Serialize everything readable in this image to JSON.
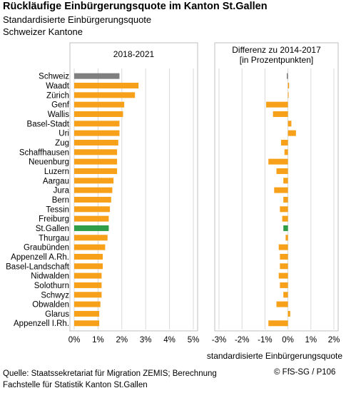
{
  "header": {
    "title": "Rückläufige Einbürgerungsquote im Kanton St.Gallen",
    "subtitle1": "Standardisierte Einbürgerungsquote",
    "subtitle2": "Schweizer Kantone"
  },
  "footer": {
    "source_line1": "Quelle: Staatssekretariat für Migration ZEMIS; Berechnung",
    "source_line2": "Fachstelle für Statistik Kanton St.Gallen",
    "copyright": "© FfS-SG / P106"
  },
  "colors": {
    "default": "#F7A11A",
    "highlight": "#2E9E48",
    "reference": "#7F7F7F",
    "grid": "#D9D9D9",
    "frame": "#BFBFBF"
  },
  "chart_data": {
    "type": "bar",
    "orientation": "horizontal",
    "xlabel": "standardisierte Einbürgerungsquote",
    "categories": [
      "Schweiz",
      "Waadt",
      "Zürich",
      "Genf",
      "Wallis",
      "Basel-Stadt",
      "Uri",
      "Zug",
      "Schaffhausen",
      "Neuenburg",
      "Luzern",
      "Aargau",
      "Jura",
      "Bern",
      "Tessin",
      "Freiburg",
      "St.Gallen",
      "Thurgau",
      "Graubünden",
      "Appenzell A.Rh.",
      "Basel-Landschaft",
      "Nidwalden",
      "Solothurn",
      "Schwyz",
      "Obwalden",
      "Glarus",
      "Appenzell I.Rh."
    ],
    "highlight": {
      "Schweiz": "reference",
      "St.Gallen": "highlight"
    },
    "panels": [
      {
        "title": "2018-2021",
        "xlim": [
          0,
          5
        ],
        "ticks": [
          0,
          1,
          2,
          3,
          4,
          5
        ],
        "tick_labels": [
          "0%",
          "1%",
          "2%",
          "3%",
          "4%",
          "5%"
        ],
        "values": [
          1.9,
          2.7,
          2.55,
          2.1,
          2.05,
          1.9,
          1.9,
          1.85,
          1.8,
          1.8,
          1.8,
          1.65,
          1.6,
          1.55,
          1.5,
          1.45,
          1.45,
          1.4,
          1.3,
          1.2,
          1.2,
          1.15,
          1.15,
          1.15,
          1.1,
          1.05,
          1.05
        ]
      },
      {
        "title": "Differenz zu 2014-2017",
        "title2": "[in Prozentpunkten]",
        "xlim": [
          -3,
          2
        ],
        "ticks": [
          -3,
          -2,
          -1,
          0,
          1,
          2
        ],
        "tick_labels": [
          "-3%",
          "-2%",
          "-1%",
          "0%",
          "1%",
          "2%"
        ],
        "values": [
          -0.05,
          0.05,
          0.02,
          -0.95,
          -0.65,
          0.15,
          0.35,
          -0.3,
          -0.15,
          -0.85,
          -0.5,
          -0.2,
          -0.6,
          -0.2,
          -0.35,
          -0.25,
          -0.2,
          -0.1,
          -0.4,
          -0.35,
          -0.35,
          -0.4,
          -0.35,
          -0.2,
          -0.5,
          0.1,
          -0.85
        ]
      }
    ]
  }
}
